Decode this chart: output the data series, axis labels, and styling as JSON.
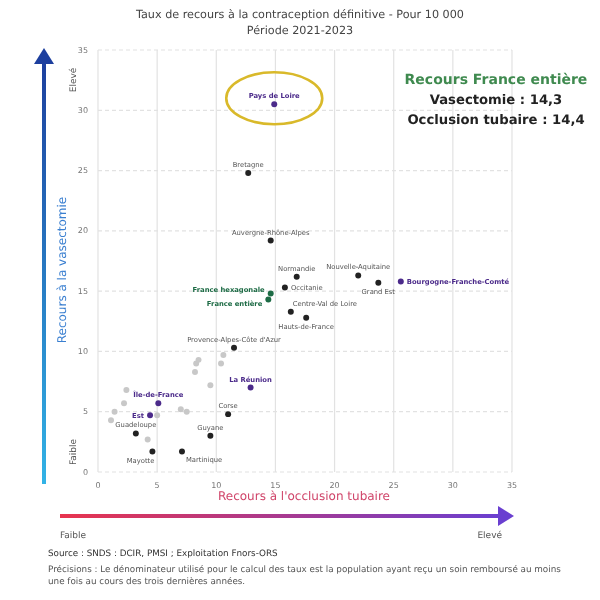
{
  "chart_data": {
    "type": "scatter",
    "title": "Taux de recours à la contraception définitive - Pour 10 000",
    "subtitle": "Période 2021-2023",
    "xlabel": "Recours à l'occlusion tubaire",
    "ylabel": "Recours à la vasectomie",
    "xlim": [
      0,
      35
    ],
    "xticks": [
      0,
      5,
      10,
      15,
      20,
      25,
      30,
      35
    ],
    "ylim": [
      0,
      35
    ],
    "yticks": [
      0,
      5,
      10,
      15,
      20,
      25,
      30,
      35
    ],
    "grid": true,
    "marker": "circle",
    "series": [
      {
        "color": "#4b2a8a",
        "x": [
          14.9,
          25.6,
          12.9,
          5.1,
          4.4
        ],
        "values": [
          30.5,
          15.8,
          7.0,
          5.7,
          4.7
        ],
        "value_labels": [
          "Pays de Loire",
          "Bourgogne-Franche-Comté",
          "La Réunion",
          "Île-de-France",
          "Est"
        ]
      },
      {
        "color": "#1d6b45",
        "x": [
          14.6,
          14.4
        ],
        "values": [
          14.8,
          14.3
        ],
        "value_labels": [
          "France hexagonale",
          "France entière"
        ]
      },
      {
        "color": "#222222",
        "x": [
          12.7,
          14.6,
          16.8,
          15.8,
          22.0,
          23.7,
          16.3,
          17.6,
          11.5,
          11.0,
          3.2,
          9.5,
          7.1,
          4.6
        ],
        "values": [
          24.8,
          19.2,
          16.2,
          15.3,
          16.3,
          15.7,
          13.3,
          12.8,
          10.3,
          4.8,
          3.2,
          3.0,
          1.7,
          1.7
        ],
        "value_labels": [
          "Bretagne",
          "Auvergne-Rhône-Alpes",
          "Normandie",
          "Occitanie",
          "Nouvelle-Aquitaine",
          "Grand Est",
          "Centre-Val de Loire",
          "Hauts-de-France",
          "Provence-Alpes-Côte d'Azur",
          "Corse",
          "Guadeloupe",
          "Guyane",
          "Martinique",
          "Mayotte"
        ]
      },
      {
        "color": "#c8c8c8",
        "x": [
          2.4,
          2.2,
          1.4,
          1.1,
          4.2,
          8.3,
          8.5,
          8.2,
          10.4,
          10.6,
          9.5,
          7.0,
          7.5,
          5.0
        ],
        "values": [
          6.8,
          5.7,
          5.0,
          4.3,
          2.7,
          9.0,
          9.3,
          8.3,
          9.0,
          9.7,
          7.2,
          5.2,
          5.0,
          4.7
        ]
      }
    ],
    "annotations": [
      "Faible",
      "Elevé",
      "Faible",
      "Elevé",
      "Recours France entière",
      "Vasectomie : 14,3",
      "Occlusion tubaire : 14,4",
      "Source : SNDS : DCIR, PMSI ; Exploitation Fnors-ORS",
      "Précisions : Le dénominateur utilisé pour le calcul des taux est la population ayant reçu un soin remboursé au moins une fois au cours des trois dernières années."
    ]
  }
}
